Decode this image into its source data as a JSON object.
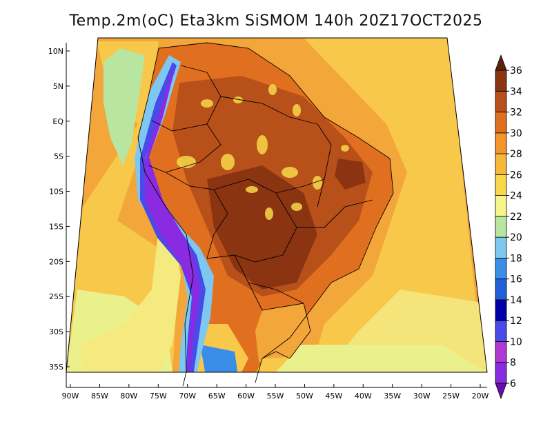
{
  "title": "Temp.2m(oC) Eta3km SiSMOM 140h 20Z17OCT2025",
  "map": {
    "lon_range": [
      -90,
      -20
    ],
    "lat_range": [
      -38,
      12
    ],
    "lon_ticks": [
      {
        "value": -90,
        "label": "90W"
      },
      {
        "value": -85,
        "label": "85W"
      },
      {
        "value": -80,
        "label": "80W"
      },
      {
        "value": -75,
        "label": "75W"
      },
      {
        "value": -70,
        "label": "70W"
      },
      {
        "value": -65,
        "label": "65W"
      },
      {
        "value": -60,
        "label": "60W"
      },
      {
        "value": -55,
        "label": "55W"
      },
      {
        "value": -50,
        "label": "50W"
      },
      {
        "value": -45,
        "label": "45W"
      },
      {
        "value": -40,
        "label": "40W"
      },
      {
        "value": -35,
        "label": "35W"
      },
      {
        "value": -30,
        "label": "30W"
      },
      {
        "value": -25,
        "label": "25W"
      },
      {
        "value": -20,
        "label": "20W"
      }
    ],
    "lat_ticks": [
      {
        "value": 10,
        "label": "10N"
      },
      {
        "value": 5,
        "label": "5N"
      },
      {
        "value": 0,
        "label": "EQ"
      },
      {
        "value": -5,
        "label": "5S"
      },
      {
        "value": -10,
        "label": "10S"
      },
      {
        "value": -15,
        "label": "15S"
      },
      {
        "value": -20,
        "label": "20S"
      },
      {
        "value": -25,
        "label": "25S"
      },
      {
        "value": -30,
        "label": "30S"
      },
      {
        "value": -35,
        "label": "35S"
      }
    ]
  },
  "colorbar": {
    "labels": [
      "6",
      "8",
      "10",
      "12",
      "14",
      "16",
      "18",
      "20",
      "22",
      "24",
      "26",
      "28",
      "30",
      "32",
      "34",
      "36"
    ],
    "colors": [
      "#6a0dad",
      "#8a2be2",
      "#b03ad0",
      "#4a4ae8",
      "#0000a8",
      "#1f5fd8",
      "#3a8ee8",
      "#7dc8f0",
      "#b8e6a0",
      "#f5f58a",
      "#f7d84a",
      "#f5b83a",
      "#f2952a",
      "#e07020",
      "#b8501a",
      "#8a3412",
      "#5e2008"
    ]
  },
  "colors": {
    "ocean_warm": "#f3a63a",
    "ocean_mild": "#f7c84a",
    "ocean_cool": "#f4ea80",
    "coast_cool": "#b8e6a0",
    "land_hot": "#e07020",
    "land_hotter": "#b8501a",
    "land_hottest": "#8a3412",
    "andes_cold": "#4a4ae8",
    "andes_colder": "#8a2be2",
    "border": "#000000"
  }
}
